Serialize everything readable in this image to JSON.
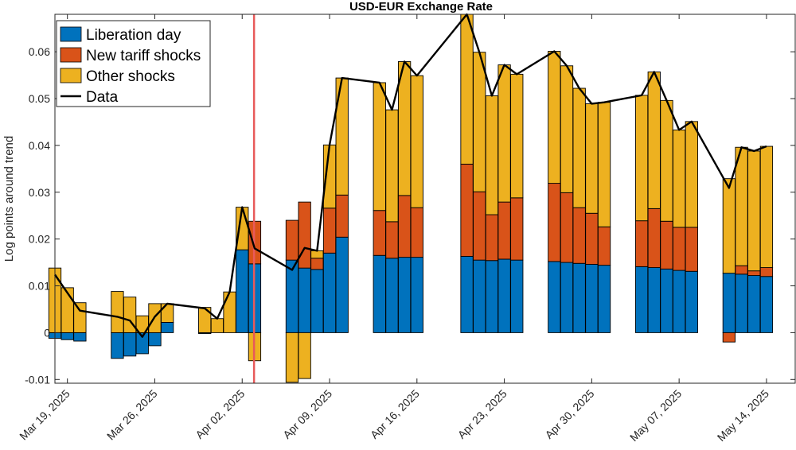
{
  "chart_data": {
    "type": "bar",
    "stacked": true,
    "title": "USD-EUR Exchange Rate",
    "ylabel": "Log points around trend",
    "xlabel": "",
    "x_origin_date": "Mar 18, 2025",
    "x_domain_days": [
      0,
      59.3
    ],
    "ylim": [
      -0.0108,
      0.068
    ],
    "yticks": [
      -0.01,
      0,
      0.01,
      0.02,
      0.03,
      0.04,
      0.05,
      0.06
    ],
    "ytick_labels": [
      "-0.01",
      "0",
      "0.01",
      "0.02",
      "0.03",
      "0.04",
      "0.05",
      "0.06"
    ],
    "xticks": [
      {
        "day": 1,
        "label": "Mar 19, 2025"
      },
      {
        "day": 8,
        "label": "Mar 26, 2025"
      },
      {
        "day": 15,
        "label": "Apr 02, 2025"
      },
      {
        "day": 22,
        "label": "Apr 09, 2025"
      },
      {
        "day": 29,
        "label": "Apr 16, 2025"
      },
      {
        "day": 36,
        "label": "Apr 23, 2025"
      },
      {
        "day": 43,
        "label": "Apr 30, 2025"
      },
      {
        "day": 50,
        "label": "May 07, 2025"
      },
      {
        "day": 57,
        "label": "May 14, 2025"
      }
    ],
    "event_line_day": 15.95,
    "event_line_color": "#e85a5a",
    "legend": {
      "location": "top-left",
      "entries": [
        "Liberation day",
        "New tariff shocks",
        "Other shocks",
        "Data"
      ]
    },
    "series": [
      {
        "name": "Liberation day",
        "color": "#0072BD"
      },
      {
        "name": "New tariff shocks",
        "color": "#D95319"
      },
      {
        "name": "Other shocks",
        "color": "#EDB120"
      }
    ],
    "line_series": {
      "name": "Data",
      "color": "#000000"
    },
    "bar_width_days": 0.98,
    "bars": [
      {
        "x": 0.0,
        "lib": -0.0012,
        "tariff": 0.0,
        "other": 0.0138,
        "data": 0.0124
      },
      {
        "x": 1.0,
        "lib": -0.0015,
        "tariff": 0.0,
        "other": 0.0096,
        "data": 0.0085
      },
      {
        "x": 2.0,
        "lib": -0.0018,
        "tariff": 0.0,
        "other": 0.0064,
        "data": 0.0047
      },
      {
        "x": 5.0,
        "lib": -0.0055,
        "tariff": 0.0,
        "other": 0.0088,
        "data": 0.0034
      },
      {
        "x": 6.0,
        "lib": -0.005,
        "tariff": 0.0,
        "other": 0.0076,
        "data": 0.0026
      },
      {
        "x": 7.0,
        "lib": -0.0045,
        "tariff": 0.0,
        "other": 0.0036,
        "data": -0.0009
      },
      {
        "x": 8.0,
        "lib": -0.0028,
        "tariff": 0.0,
        "other": 0.0062,
        "data": 0.0034
      },
      {
        "x": 9.0,
        "lib": 0.0022,
        "tariff": 0.0,
        "other": 0.004,
        "data": 0.0062
      },
      {
        "x": 12.0,
        "lib": -0.0002,
        "tariff": 0.0,
        "other": 0.0054,
        "data": 0.0052
      },
      {
        "x": 13.0,
        "lib": 0.0,
        "tariff": 0.0,
        "other": 0.003,
        "data": 0.003
      },
      {
        "x": 14.0,
        "lib": 0.0,
        "tariff": 0.0,
        "other": 0.0087,
        "data": 0.0087
      },
      {
        "x": 15.0,
        "lib": 0.0177,
        "tariff": 0.0,
        "other": 0.0091,
        "data": 0.0268
      },
      {
        "x": 16.0,
        "lib": 0.0147,
        "tariff": 0.0091,
        "other": -0.006,
        "data": 0.018
      },
      {
        "x": 19.0,
        "lib": 0.0155,
        "tariff": 0.0085,
        "other": -0.0106,
        "data": 0.0134
      },
      {
        "x": 20.0,
        "lib": 0.0138,
        "tariff": 0.0141,
        "other": -0.0098,
        "data": 0.0181
      },
      {
        "x": 21.0,
        "lib": 0.0135,
        "tariff": 0.0024,
        "other": 0.0016,
        "data": 0.0175
      },
      {
        "x": 22.0,
        "lib": 0.017,
        "tariff": 0.0096,
        "other": 0.0135,
        "data": 0.0401
      },
      {
        "x": 23.0,
        "lib": 0.0204,
        "tariff": 0.009,
        "other": 0.025,
        "data": 0.0544
      },
      {
        "x": 26.0,
        "lib": 0.0165,
        "tariff": 0.0096,
        "other": 0.0273,
        "data": 0.0534
      },
      {
        "x": 27.0,
        "lib": 0.0159,
        "tariff": 0.0078,
        "other": 0.0239,
        "data": 0.0476
      },
      {
        "x": 28.0,
        "lib": 0.0161,
        "tariff": 0.0132,
        "other": 0.0286,
        "data": 0.0579
      },
      {
        "x": 29.0,
        "lib": 0.0161,
        "tariff": 0.0106,
        "other": 0.0282,
        "data": 0.0549
      },
      {
        "x": 33.0,
        "lib": 0.0163,
        "tariff": 0.0197,
        "other": 0.032,
        "data": 0.068
      },
      {
        "x": 34.0,
        "lib": 0.0155,
        "tariff": 0.0146,
        "other": 0.0298,
        "data": 0.0599
      },
      {
        "x": 35.0,
        "lib": 0.0154,
        "tariff": 0.0098,
        "other": 0.0254,
        "data": 0.0506
      },
      {
        "x": 36.0,
        "lib": 0.0157,
        "tariff": 0.0122,
        "other": 0.0293,
        "data": 0.0572
      },
      {
        "x": 37.0,
        "lib": 0.0155,
        "tariff": 0.0133,
        "other": 0.0264,
        "data": 0.0552
      },
      {
        "x": 40.0,
        "lib": 0.0152,
        "tariff": 0.0167,
        "other": 0.0282,
        "data": 0.0601
      },
      {
        "x": 41.0,
        "lib": 0.015,
        "tariff": 0.0149,
        "other": 0.0271,
        "data": 0.057
      },
      {
        "x": 42.0,
        "lib": 0.0148,
        "tariff": 0.0119,
        "other": 0.0255,
        "data": 0.0522
      },
      {
        "x": 43.0,
        "lib": 0.0146,
        "tariff": 0.0109,
        "other": 0.0234,
        "data": 0.0489
      },
      {
        "x": 44.0,
        "lib": 0.0144,
        "tariff": 0.0082,
        "other": 0.0266,
        "data": 0.0492
      },
      {
        "x": 47.0,
        "lib": 0.0141,
        "tariff": 0.0098,
        "other": 0.0268,
        "data": 0.0507
      },
      {
        "x": 48.0,
        "lib": 0.0139,
        "tariff": 0.0126,
        "other": 0.0292,
        "data": 0.0557
      },
      {
        "x": 49.0,
        "lib": 0.0136,
        "tariff": 0.0102,
        "other": 0.0258,
        "data": 0.0496
      },
      {
        "x": 50.0,
        "lib": 0.0133,
        "tariff": 0.0092,
        "other": 0.0208,
        "data": 0.0433
      },
      {
        "x": 51.0,
        "lib": 0.0131,
        "tariff": 0.0094,
        "other": 0.0226,
        "data": 0.0451
      },
      {
        "x": 54.0,
        "lib": 0.0127,
        "tariff": -0.002,
        "other": 0.0202,
        "data": 0.0309
      },
      {
        "x": 55.0,
        "lib": 0.0125,
        "tariff": 0.0018,
        "other": 0.0253,
        "data": 0.0396
      },
      {
        "x": 56.0,
        "lib": 0.0122,
        "tariff": 0.001,
        "other": 0.0256,
        "data": 0.0388
      },
      {
        "x": 57.0,
        "lib": 0.012,
        "tariff": 0.0019,
        "other": 0.0259,
        "data": 0.0398
      }
    ]
  }
}
